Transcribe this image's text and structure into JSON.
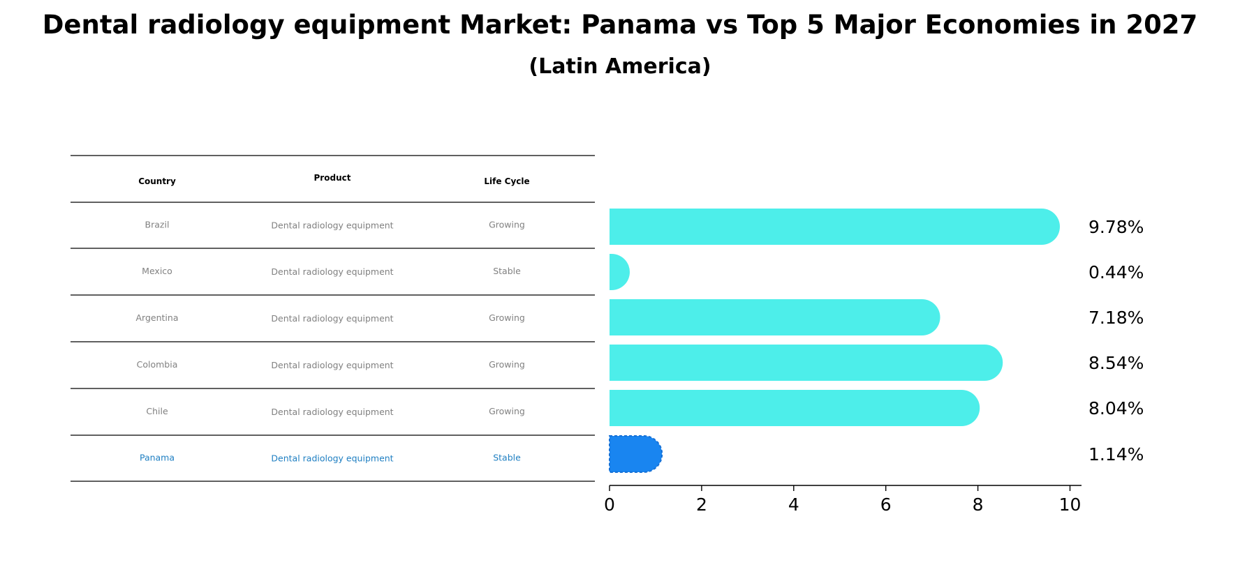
{
  "title": "Dental radiology equipment Market: Panama vs Top 5 Major Economies in 2027",
  "subtitle": "(Latin America)",
  "colors": {
    "bar": "#4DEEEA",
    "highlight": "#1985F0",
    "muted_text": "#808080",
    "highlight_text": "#1F7FC2"
  },
  "table": {
    "headers": [
      "Country",
      "Product",
      "Life Cycle"
    ],
    "rows": [
      {
        "country": "Brazil",
        "product": "Dental radiology equipment",
        "life_cycle": "Growing",
        "highlight": false
      },
      {
        "country": "Mexico",
        "product": "Dental radiology equipment",
        "life_cycle": "Stable",
        "highlight": false
      },
      {
        "country": "Argentina",
        "product": "Dental radiology equipment",
        "life_cycle": "Growing",
        "highlight": false
      },
      {
        "country": "Colombia",
        "product": "Dental radiology equipment",
        "life_cycle": "Growing",
        "highlight": false
      },
      {
        "country": "Chile",
        "product": "Dental radiology equipment",
        "life_cycle": "Growing",
        "highlight": false
      },
      {
        "country": "Panama",
        "product": "Dental radiology equipment",
        "life_cycle": "Stable",
        "highlight": true
      }
    ]
  },
  "chart_data": {
    "type": "bar",
    "orientation": "horizontal",
    "categories": [
      "Brazil",
      "Mexico",
      "Argentina",
      "Colombia",
      "Chile",
      "Panama"
    ],
    "values": [
      9.78,
      0.44,
      7.18,
      8.54,
      8.04,
      1.14
    ],
    "value_labels": [
      "9.78%",
      "0.44%",
      "7.18%",
      "8.54%",
      "8.04%",
      "1.14%"
    ],
    "highlight_index": 5,
    "xlim": [
      0,
      10.25
    ],
    "xticks": [
      0,
      2,
      4,
      6,
      8,
      10
    ],
    "xlabel": "",
    "ylabel": "",
    "grid": false
  }
}
